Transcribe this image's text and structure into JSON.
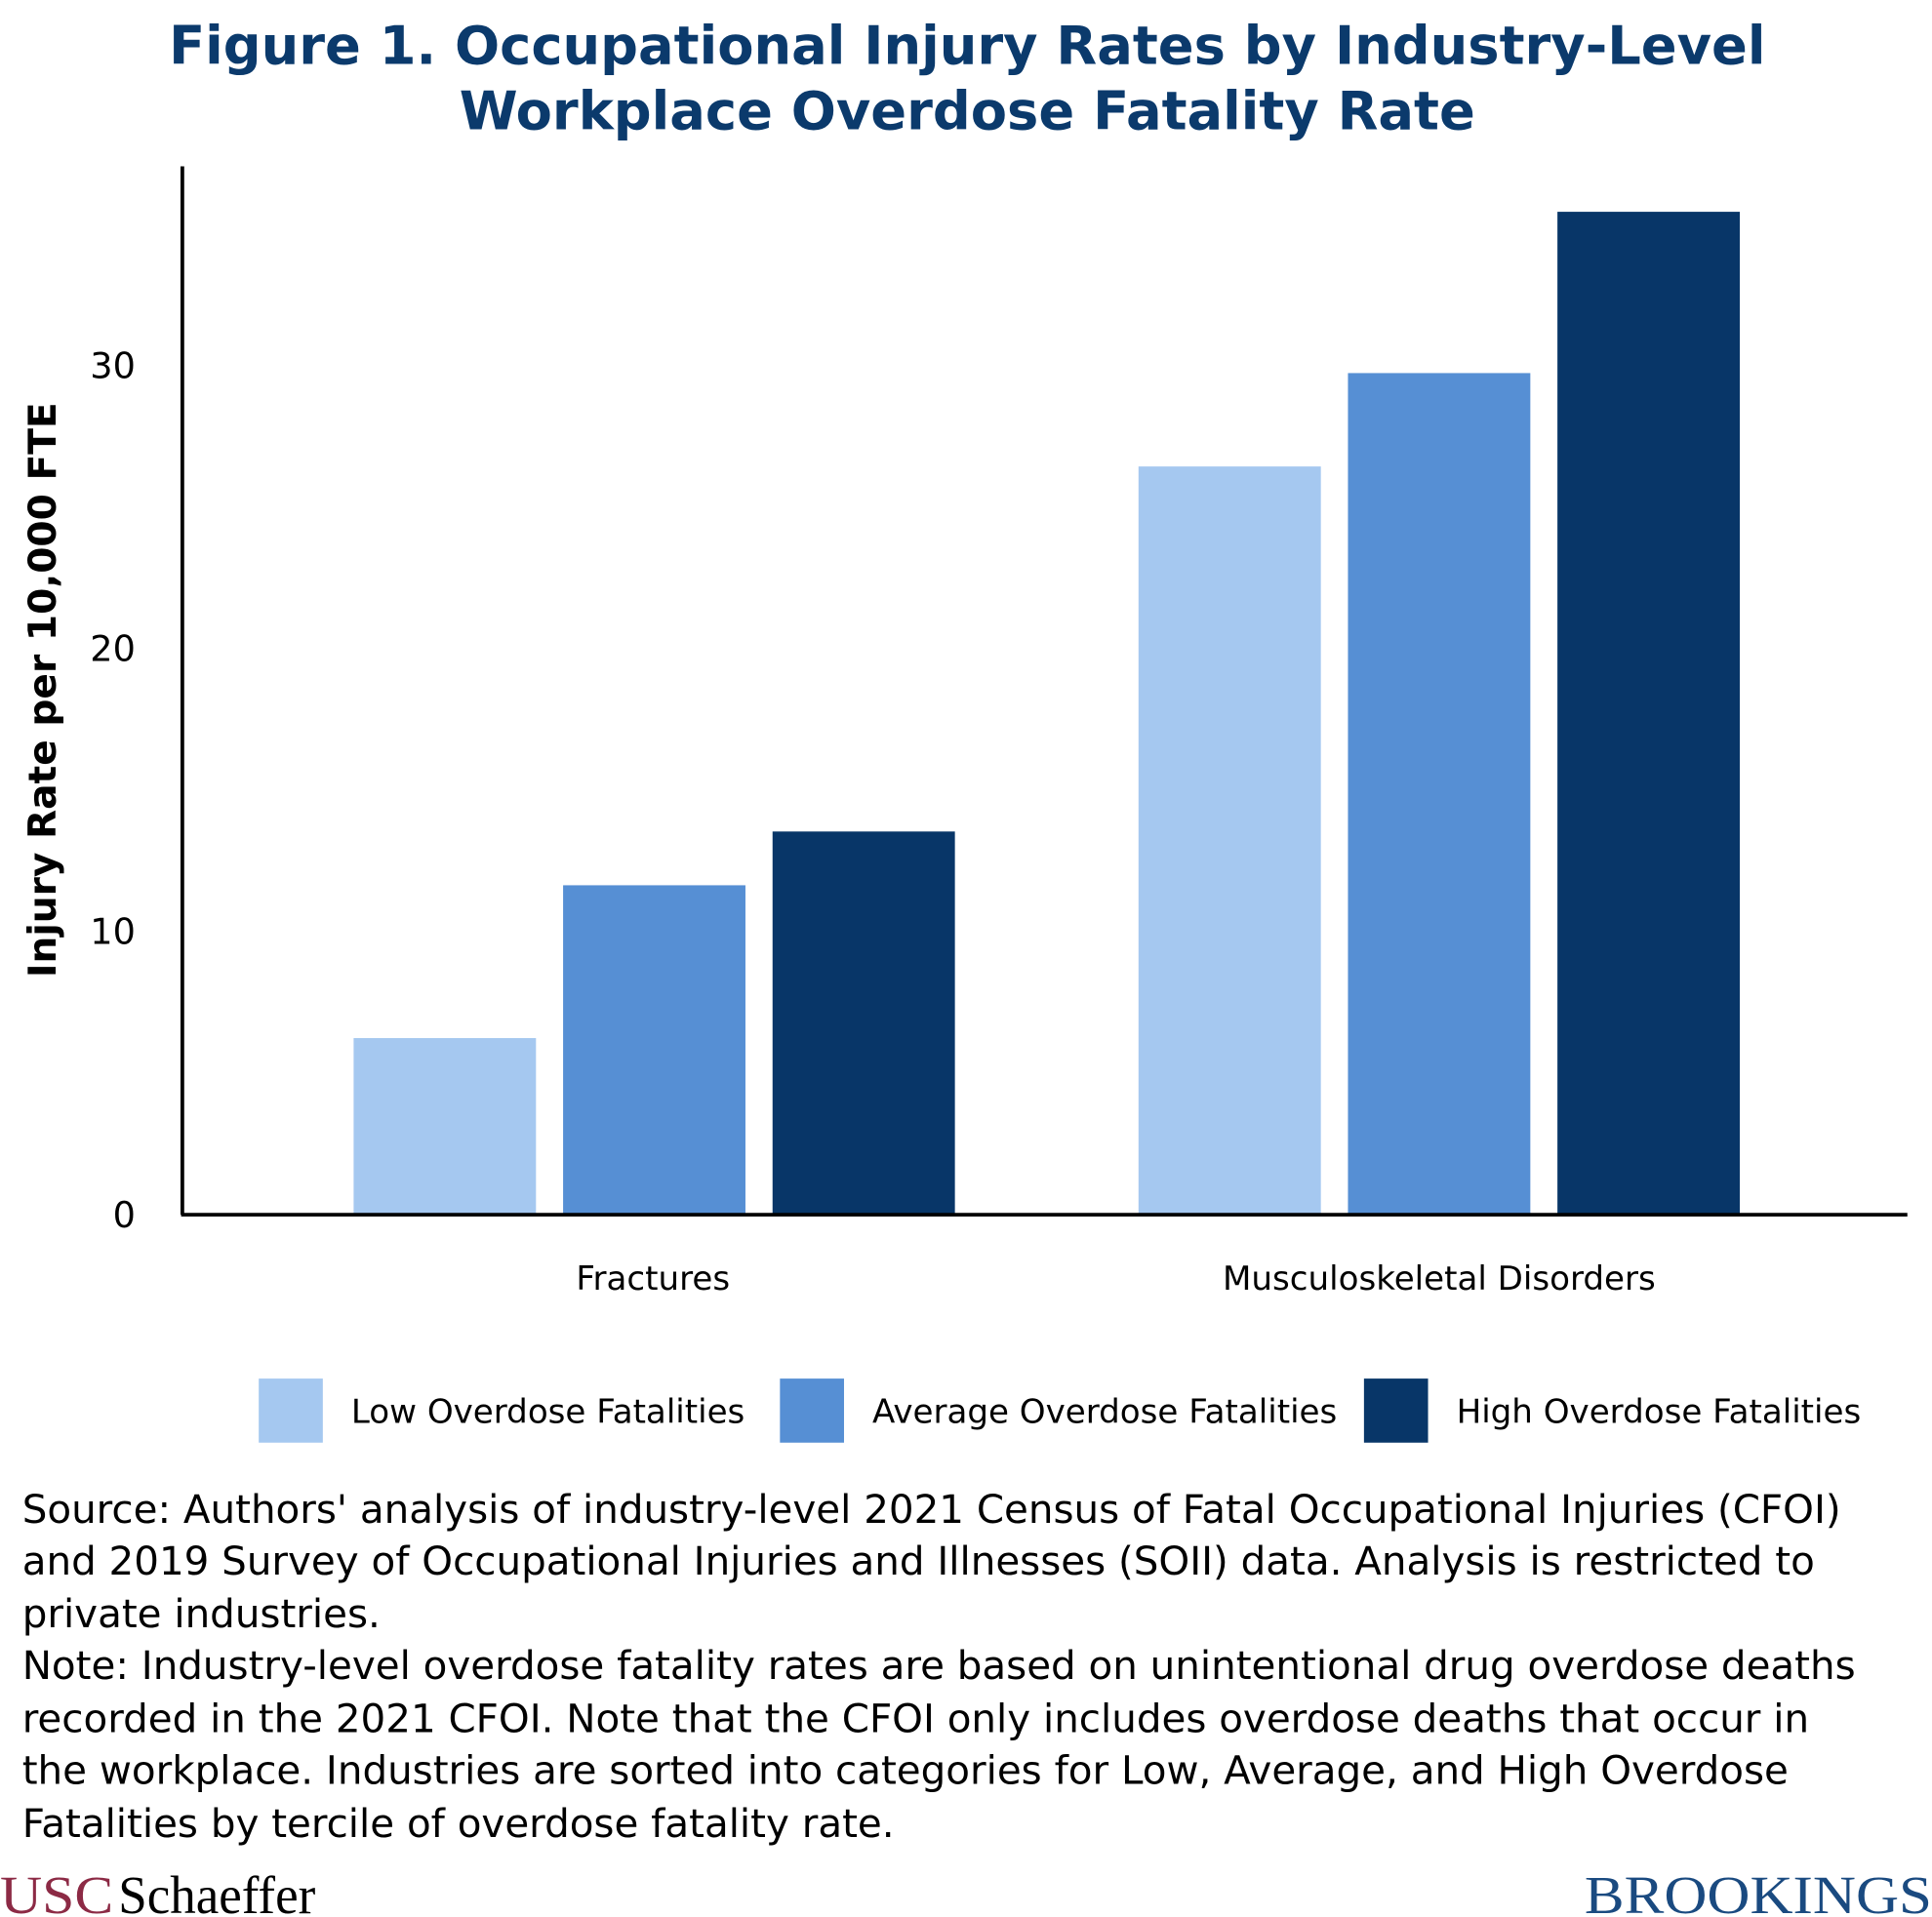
{
  "chart_data": {
    "type": "bar",
    "title": [
      "Figure 1. Occupational Injury Rates by Industry-Level",
      "Workplace Overdose Fatality Rate"
    ],
    "xlabel": "",
    "ylabel": "Injury Rate per 10,000 FTE",
    "ylim": [
      0,
      37
    ],
    "yticks": [
      0,
      10,
      20,
      30
    ],
    "grid": false,
    "legend_position": "bottom",
    "categories": [
      "Fractures",
      "Musculoskeletal Disorders"
    ],
    "series": [
      {
        "name": "Low Overdose Fatalities",
        "color": "#a5c8f0",
        "values": [
          6.2,
          26.4
        ]
      },
      {
        "name": "Average Overdose Fatalities",
        "color": "#568fd4",
        "values": [
          11.6,
          29.7
        ]
      },
      {
        "name": "High Overdose Fatalities",
        "color": "#083668",
        "values": [
          13.5,
          35.4
        ]
      }
    ]
  },
  "notes": [
    "Source: Authors' analysis of industry-level 2021 Census of Fatal Occupational Injuries (CFOI)",
    "and 2019 Survey of Occupational Injuries and Illnesses (SOII) data. Analysis is restricted to",
    "private industries.",
    "Note: Industry-level overdose fatality rates are based on unintentional drug overdose deaths",
    "recorded in the 2021 CFOI. Note that the CFOI only includes overdose deaths that occur in",
    "the workplace. Industries are sorted into categories for Low, Average, and High Overdose",
    "Fatalities by tercile of overdose fatality rate."
  ],
  "logos": {
    "usc": "USC",
    "schaeffer": "Schaeffer",
    "brookings": "BROOKINGS"
  }
}
